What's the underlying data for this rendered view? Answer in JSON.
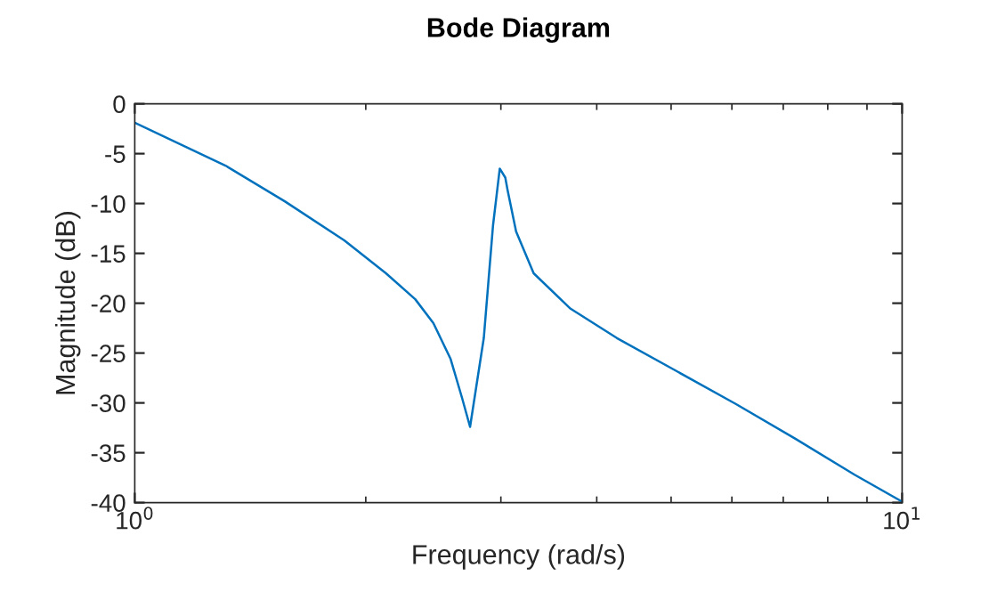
{
  "chart_data": {
    "type": "line",
    "title": "Bode Diagram",
    "xlabel": "Frequency (rad/s)",
    "ylabel": "Magnitude (dB)",
    "log": "x",
    "x": [
      1,
      1.313,
      1.57,
      1.875,
      2.125,
      2.32,
      2.45,
      2.58,
      2.67,
      2.735,
      2.85,
      2.93,
      2.99,
      3.04,
      3.06,
      3.14,
      3.31,
      3.69,
      4.25,
      5.08,
      6.07,
      7.26,
      8.67,
      10
    ],
    "series": [
      {
        "color": "#0072bd",
        "values": [
          -1.9,
          -6.2,
          -9.8,
          -13.7,
          -17.0,
          -19.6,
          -22.0,
          -25.6,
          -29.5,
          -32.4,
          -23.5,
          -12.2,
          -6.5,
          -7.4,
          -8.6,
          -12.8,
          -17.0,
          -20.5,
          -23.5,
          -26.8,
          -30.1,
          -33.6,
          -37.2,
          -39.9
        ]
      }
    ],
    "xlim": [
      1,
      10
    ],
    "xticks": [
      {
        "value": 1,
        "label": "10$^{0}$"
      },
      {
        "value": 10,
        "label": "10$^{1}$"
      }
    ],
    "ylim": [
      -40,
      0
    ],
    "yticks": [
      -40,
      -35,
      -30,
      -25,
      -20,
      -15,
      -10,
      -5,
      0
    ],
    "grid": false,
    "line_style": "solid"
  }
}
